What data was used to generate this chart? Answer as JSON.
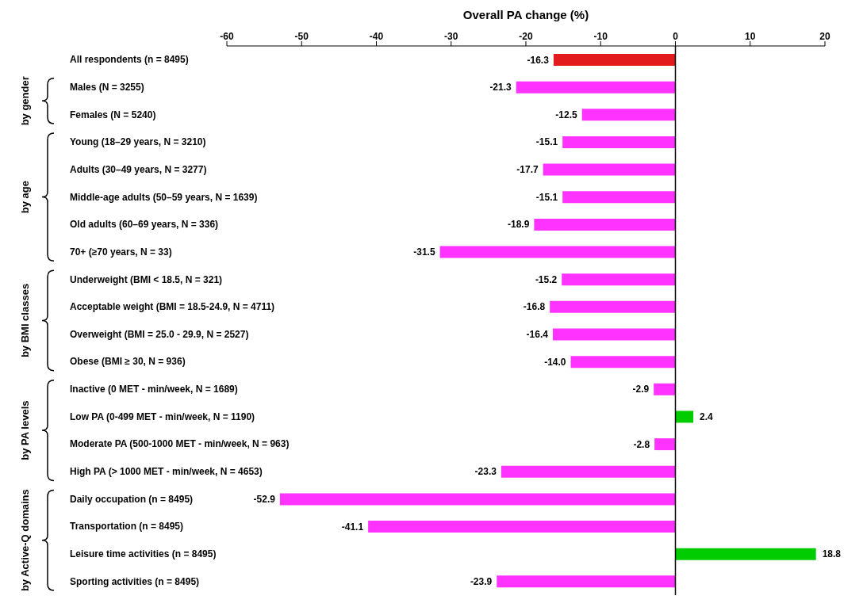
{
  "chart_data": {
    "type": "bar",
    "orientation": "horizontal",
    "xlabel": "Overall PA change (%)",
    "categories": [
      "All respondents (n = 8495)",
      "Males (N = 3255)",
      "Females (N = 5240)",
      "Young (18–29 years, N = 3210)",
      "Adults (30–49 years, N = 3277)",
      "Middle-age adults (50–59 years, N = 1639)",
      "Old adults (60–69 years, N = 336)",
      "70+ (≥70 years, N = 33)",
      "Underweight (BMI < 18.5, N = 321)",
      "Acceptable weight (BMI = 18.5-24.9, N = 4711)",
      "Overweight (BMI = 25.0 - 29.9, N = 2527)",
      "Obese (BMI ≥ 30, N = 936)",
      "Inactive (0 MET - min/week, N = 1689)",
      "Low PA (0-499 MET - min/week, N = 1190)",
      "Moderate PA (500-1000 MET - min/week, N = 963)",
      "High PA (> 1000 MET - min/week, N = 4653)",
      "Daily occupation (n = 8495)",
      "Transportation (n = 8495)",
      "Leisure time activities (n = 8495)",
      "Sporting activities (n = 8495)"
    ],
    "values": [
      -16.3,
      -21.3,
      -12.5,
      -15.1,
      -17.7,
      -15.1,
      -18.9,
      -31.5,
      -15.2,
      -16.8,
      -16.4,
      -14.0,
      -2.9,
      2.4,
      -2.8,
      -23.3,
      -52.9,
      -41.1,
      18.8,
      -23.9
    ],
    "colors": [
      "#e31a1c",
      "#ff33ff",
      "#ff33ff",
      "#ff33ff",
      "#ff33ff",
      "#ff33ff",
      "#ff33ff",
      "#ff33ff",
      "#ff33ff",
      "#ff33ff",
      "#ff33ff",
      "#ff33ff",
      "#ff33ff",
      "#00cc00",
      "#ff33ff",
      "#ff33ff",
      "#ff33ff",
      "#ff33ff",
      "#00cc00",
      "#ff33ff"
    ],
    "value_labels": [
      "-16.3",
      "-21.3",
      "-12.5",
      "-15.1",
      "-17.7",
      "-15.1",
      "-18.9",
      "-31.5",
      "-15.2",
      "-16.8",
      "-16.4",
      "-14.0",
      "-2.9",
      "2.4",
      "-2.8",
      "-23.3",
      "-52.9",
      "-41.1",
      "18.8",
      "-23.9"
    ],
    "xlim": [
      -60,
      20
    ],
    "xticks": [
      -60,
      -50,
      -40,
      -30,
      -20,
      -10,
      0,
      10,
      20
    ],
    "ref_lines": [
      {
        "axis": "x",
        "value": 0
      }
    ],
    "annotations": [
      "by gender",
      "by age",
      "by BMI classes",
      "by PA levels",
      "by Active-Q domains"
    ],
    "line_style": "solid"
  }
}
